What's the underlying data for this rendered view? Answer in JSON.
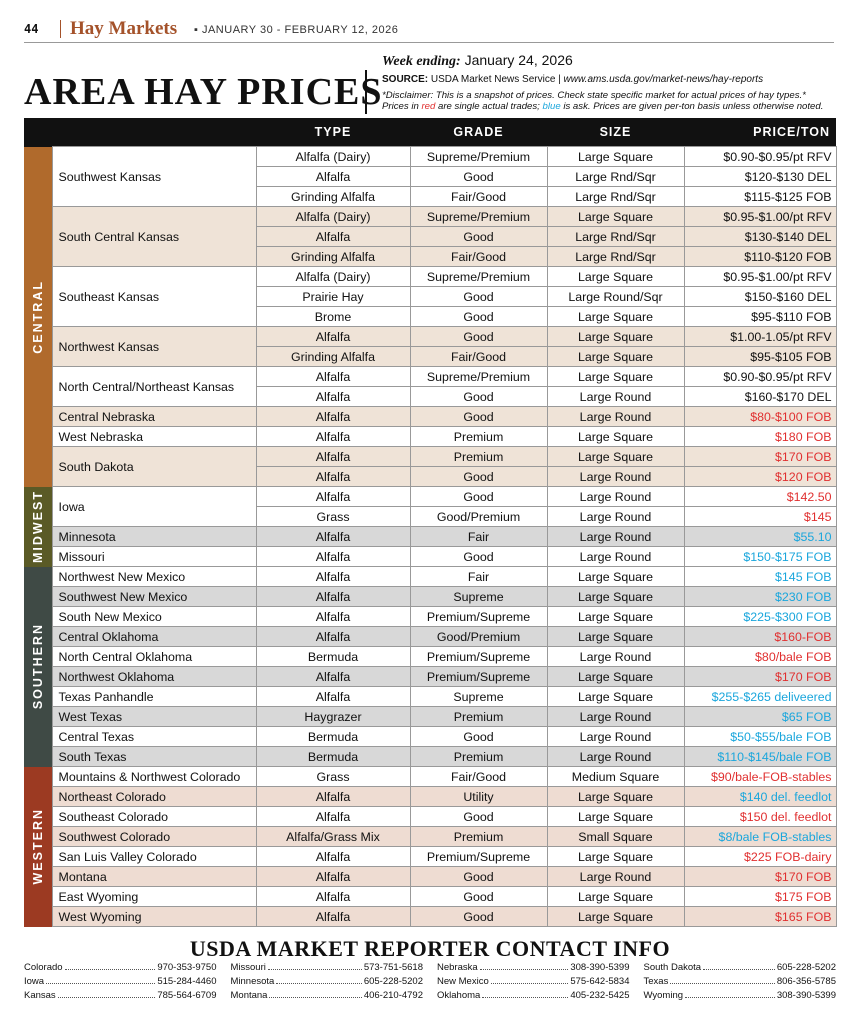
{
  "header": {
    "page_number": "44",
    "section": "Hay Markets",
    "issue_dates": "JANUARY 30 - FEBRUARY 12, 2026"
  },
  "title": "AREA HAY PRICES",
  "week": {
    "label": "Week ending:",
    "date": "January 24, 2026"
  },
  "source": {
    "label": "SOURCE:",
    "text": "USDA Market News Service",
    "url": "www.ams.usda.gov/market-news/hay-reports"
  },
  "disclaimer": {
    "line1": "*Disclaimer: This is a snapshot of prices. Check state specific market for actual prices of hay types.*",
    "line2_pre": "Prices in ",
    "red_word": "red",
    "line2_mid": " are single actual trades; ",
    "blue_word": "blue",
    "line2_post": " is ask. Prices are given per-ton basis unless otherwise noted."
  },
  "columns": [
    "TYPE",
    "GRADE",
    "SIZE",
    "PRICE/TON"
  ],
  "colors": {
    "central": "#b06a2c",
    "midwest": "#5a5a26",
    "southern": "#3f4a45",
    "western": "#9c3a22",
    "red": "#e03030",
    "blue": "#1aa6dc"
  },
  "regions": [
    {
      "name": "CENTRAL",
      "key": "central",
      "groups": [
        {
          "loc": "Southwest Kansas",
          "shade": false,
          "rows": [
            {
              "type": "Alfalfa (Dairy)",
              "grade": "Supreme/Premium",
              "size": "Large Square",
              "price": "$0.90-$0.95/pt RFV",
              "c": ""
            },
            {
              "type": "Alfalfa",
              "grade": "Good",
              "size": "Large Rnd/Sqr",
              "price": "$120-$130 DEL",
              "c": ""
            },
            {
              "type": "Grinding Alfalfa",
              "grade": "Fair/Good",
              "size": "Large Rnd/Sqr",
              "price": "$115-$125 FOB",
              "c": ""
            }
          ]
        },
        {
          "loc": "South Central Kansas",
          "shade": true,
          "rows": [
            {
              "type": "Alfalfa (Dairy)",
              "grade": "Supreme/Premium",
              "size": "Large Square",
              "price": "$0.95-$1.00/pt RFV",
              "c": ""
            },
            {
              "type": "Alfalfa",
              "grade": "Good",
              "size": "Large Rnd/Sqr",
              "price": "$130-$140 DEL",
              "c": ""
            },
            {
              "type": "Grinding Alfalfa",
              "grade": "Fair/Good",
              "size": "Large Rnd/Sqr",
              "price": "$110-$120 FOB",
              "c": ""
            }
          ]
        },
        {
          "loc": "Southeast Kansas",
          "shade": false,
          "rows": [
            {
              "type": "Alfalfa (Dairy)",
              "grade": "Supreme/Premium",
              "size": "Large Square",
              "price": "$0.95-$1.00/pt RFV",
              "c": ""
            },
            {
              "type": "Prairie Hay",
              "grade": "Good",
              "size": "Large Round/Sqr",
              "price": "$150-$160 DEL",
              "c": ""
            },
            {
              "type": "Brome",
              "grade": "Good",
              "size": "Large Square",
              "price": "$95-$110 FOB",
              "c": ""
            }
          ]
        },
        {
          "loc": "Northwest Kansas",
          "shade": true,
          "rows": [
            {
              "type": "Alfalfa",
              "grade": "Good",
              "size": "Large Square",
              "price": "$1.00-1.05/pt RFV",
              "c": ""
            },
            {
              "type": "Grinding Alfalfa",
              "grade": "Fair/Good",
              "size": "Large Square",
              "price": "$95-$105 FOB",
              "c": ""
            }
          ]
        },
        {
          "loc": "North Central/Northeast Kansas",
          "shade": false,
          "rows": [
            {
              "type": "Alfalfa",
              "grade": "Supreme/Premium",
              "size": "Large Square",
              "price": "$0.90-$0.95/pt RFV",
              "c": ""
            },
            {
              "type": "Alfalfa",
              "grade": "Good",
              "size": "Large Round",
              "price": "$160-$170 DEL",
              "c": ""
            }
          ]
        },
        {
          "loc": "Central Nebraska",
          "shade": true,
          "rows": [
            {
              "type": "Alfalfa",
              "grade": "Good",
              "size": "Large Round",
              "price": "$80-$100 FOB",
              "c": "red"
            }
          ]
        },
        {
          "loc": "West Nebraska",
          "shade": false,
          "rows": [
            {
              "type": "Alfalfa",
              "grade": "Premium",
              "size": "Large Square",
              "price": "$180 FOB",
              "c": "red"
            }
          ]
        },
        {
          "loc": "South Dakota",
          "shade": true,
          "rows": [
            {
              "type": "Alfalfa",
              "grade": "Premium",
              "size": "Large Square",
              "price": "$170 FOB",
              "c": "red"
            },
            {
              "type": "Alfalfa",
              "grade": "Good",
              "size": "Large Round",
              "price": "$120 FOB",
              "c": "red"
            }
          ]
        }
      ]
    },
    {
      "name": "MIDWEST",
      "key": "midwest",
      "groups": [
        {
          "loc": "Iowa",
          "shade": false,
          "rows": [
            {
              "type": "Alfalfa",
              "grade": "Good",
              "size": "Large Round",
              "price": "$142.50",
              "c": "red"
            },
            {
              "type": "Grass",
              "grade": "Good/Premium",
              "size": "Large Round",
              "price": "$145",
              "c": "red"
            }
          ]
        },
        {
          "loc": "Minnesota",
          "shade": "g",
          "rows": [
            {
              "type": "Alfalfa",
              "grade": "Fair",
              "size": "Large Round",
              "price": "$55.10",
              "c": "blue"
            }
          ]
        },
        {
          "loc": "Missouri",
          "shade": false,
          "rows": [
            {
              "type": "Alfalfa",
              "grade": "Good",
              "size": "Large Round",
              "price": "$150-$175 FOB",
              "c": "blue"
            }
          ]
        }
      ]
    },
    {
      "name": "SOUTHERN",
      "key": "southern",
      "groups": [
        {
          "loc": "Northwest New Mexico",
          "shade": false,
          "rows": [
            {
              "type": "Alfalfa",
              "grade": "Fair",
              "size": "Large Square",
              "price": "$145 FOB",
              "c": "blue"
            }
          ]
        },
        {
          "loc": "Southwest New Mexico",
          "shade": "g",
          "rows": [
            {
              "type": "Alfalfa",
              "grade": "Supreme",
              "size": "Large Square",
              "price": "$230 FOB",
              "c": "blue"
            }
          ]
        },
        {
          "loc": "South New Mexico",
          "shade": false,
          "rows": [
            {
              "type": "Alfalfa",
              "grade": "Premium/Supreme",
              "size": "Large Square",
              "price": "$225-$300 FOB",
              "c": "blue"
            }
          ]
        },
        {
          "loc": "Central Oklahoma",
          "shade": "g",
          "rows": [
            {
              "type": "Alfalfa",
              "grade": "Good/Premium",
              "size": "Large Square",
              "price": "$160-FOB",
              "c": "red"
            }
          ]
        },
        {
          "loc": "North Central Oklahoma",
          "shade": false,
          "rows": [
            {
              "type": "Bermuda",
              "grade": "Premium/Supreme",
              "size": "Large Round",
              "price": "$80/bale FOB",
              "c": "red"
            }
          ]
        },
        {
          "loc": "Northwest Oklahoma",
          "shade": "g",
          "rows": [
            {
              "type": "Alfalfa",
              "grade": "Premium/Supreme",
              "size": "Large Square",
              "price": "$170 FOB",
              "c": "red"
            }
          ]
        },
        {
          "loc": "Texas Panhandle",
          "shade": false,
          "rows": [
            {
              "type": "Alfalfa",
              "grade": "Supreme",
              "size": "Large Square",
              "price": "$255-$265 deliveered",
              "c": "blue"
            }
          ]
        },
        {
          "loc": "West Texas",
          "shade": "g",
          "rows": [
            {
              "type": "Haygrazer",
              "grade": "Premium",
              "size": "Large Round",
              "price": "$65 FOB",
              "c": "blue"
            }
          ]
        },
        {
          "loc": "Central Texas",
          "shade": false,
          "rows": [
            {
              "type": "Bermuda",
              "grade": "Good",
              "size": "Large Round",
              "price": "$50-$55/bale FOB",
              "c": "blue"
            }
          ]
        },
        {
          "loc": "South Texas",
          "shade": "g",
          "rows": [
            {
              "type": "Bermuda",
              "grade": "Premium",
              "size": "Large Round",
              "price": "$110-$145/bale FOB",
              "c": "blue"
            }
          ]
        }
      ]
    },
    {
      "name": "WESTERN",
      "key": "western",
      "groups": [
        {
          "loc": "Mountains & Northwest Colorado",
          "shade": false,
          "rows": [
            {
              "type": "Grass",
              "grade": "Fair/Good",
              "size": "Medium Square",
              "price": "$90/bale-FOB-stables",
              "c": "red"
            }
          ]
        },
        {
          "loc": "Northeast Colorado",
          "shade": "w",
          "rows": [
            {
              "type": "Alfalfa",
              "grade": "Utility",
              "size": "Large Square",
              "price": "$140 del. feedlot",
              "c": "blue"
            }
          ]
        },
        {
          "loc": "Southeast Colorado",
          "shade": false,
          "rows": [
            {
              "type": "Alfalfa",
              "grade": "Good",
              "size": "Large Square",
              "price": "$150 del. feedlot",
              "c": "red"
            }
          ]
        },
        {
          "loc": "Southwest Colorado",
          "shade": "w",
          "rows": [
            {
              "type": "Alfalfa/Grass Mix",
              "grade": "Premium",
              "size": "Small Square",
              "price": "$8/bale FOB-stables",
              "c": "blue"
            }
          ]
        },
        {
          "loc": "San Luis Valley Colorado",
          "shade": false,
          "rows": [
            {
              "type": "Alfalfa",
              "grade": "Premium/Supreme",
              "size": "Large Square",
              "price": "$225 FOB-dairy",
              "c": "red"
            }
          ]
        },
        {
          "loc": "Montana",
          "shade": "w",
          "rows": [
            {
              "type": "Alfalfa",
              "grade": "Good",
              "size": "Large Round",
              "price": "$170 FOB",
              "c": "red"
            }
          ]
        },
        {
          "loc": "East Wyoming",
          "shade": false,
          "rows": [
            {
              "type": "Alfalfa",
              "grade": "Good",
              "size": "Large Square",
              "price": "$175 FOB",
              "c": "red"
            }
          ]
        },
        {
          "loc": "West Wyoming",
          "shade": "w",
          "rows": [
            {
              "type": "Alfalfa",
              "grade": "Good",
              "size": "Large Square",
              "price": "$165 FOB",
              "c": "red"
            }
          ]
        }
      ]
    }
  ],
  "contacts_title": "USDA MARKET REPORTER CONTACT INFO",
  "contacts": [
    {
      "state": "Colorado",
      "phone": "970-353-9750"
    },
    {
      "state": "Missouri",
      "phone": "573-751-5618"
    },
    {
      "state": "Nebraska",
      "phone": "308-390-5399"
    },
    {
      "state": "South Dakota",
      "phone": "605-228-5202"
    },
    {
      "state": "Iowa",
      "phone": "515-284-4460"
    },
    {
      "state": "Minnesota",
      "phone": "605-228-5202"
    },
    {
      "state": "New Mexico",
      "phone": "575-642-5834"
    },
    {
      "state": "Texas",
      "phone": "806-356-5785"
    },
    {
      "state": "Kansas",
      "phone": "785-564-6709"
    },
    {
      "state": "Montana",
      "phone": "406-210-4792"
    },
    {
      "state": "Oklahoma",
      "phone": "405-232-5425"
    },
    {
      "state": "Wyoming",
      "phone": "308-390-5399"
    }
  ]
}
